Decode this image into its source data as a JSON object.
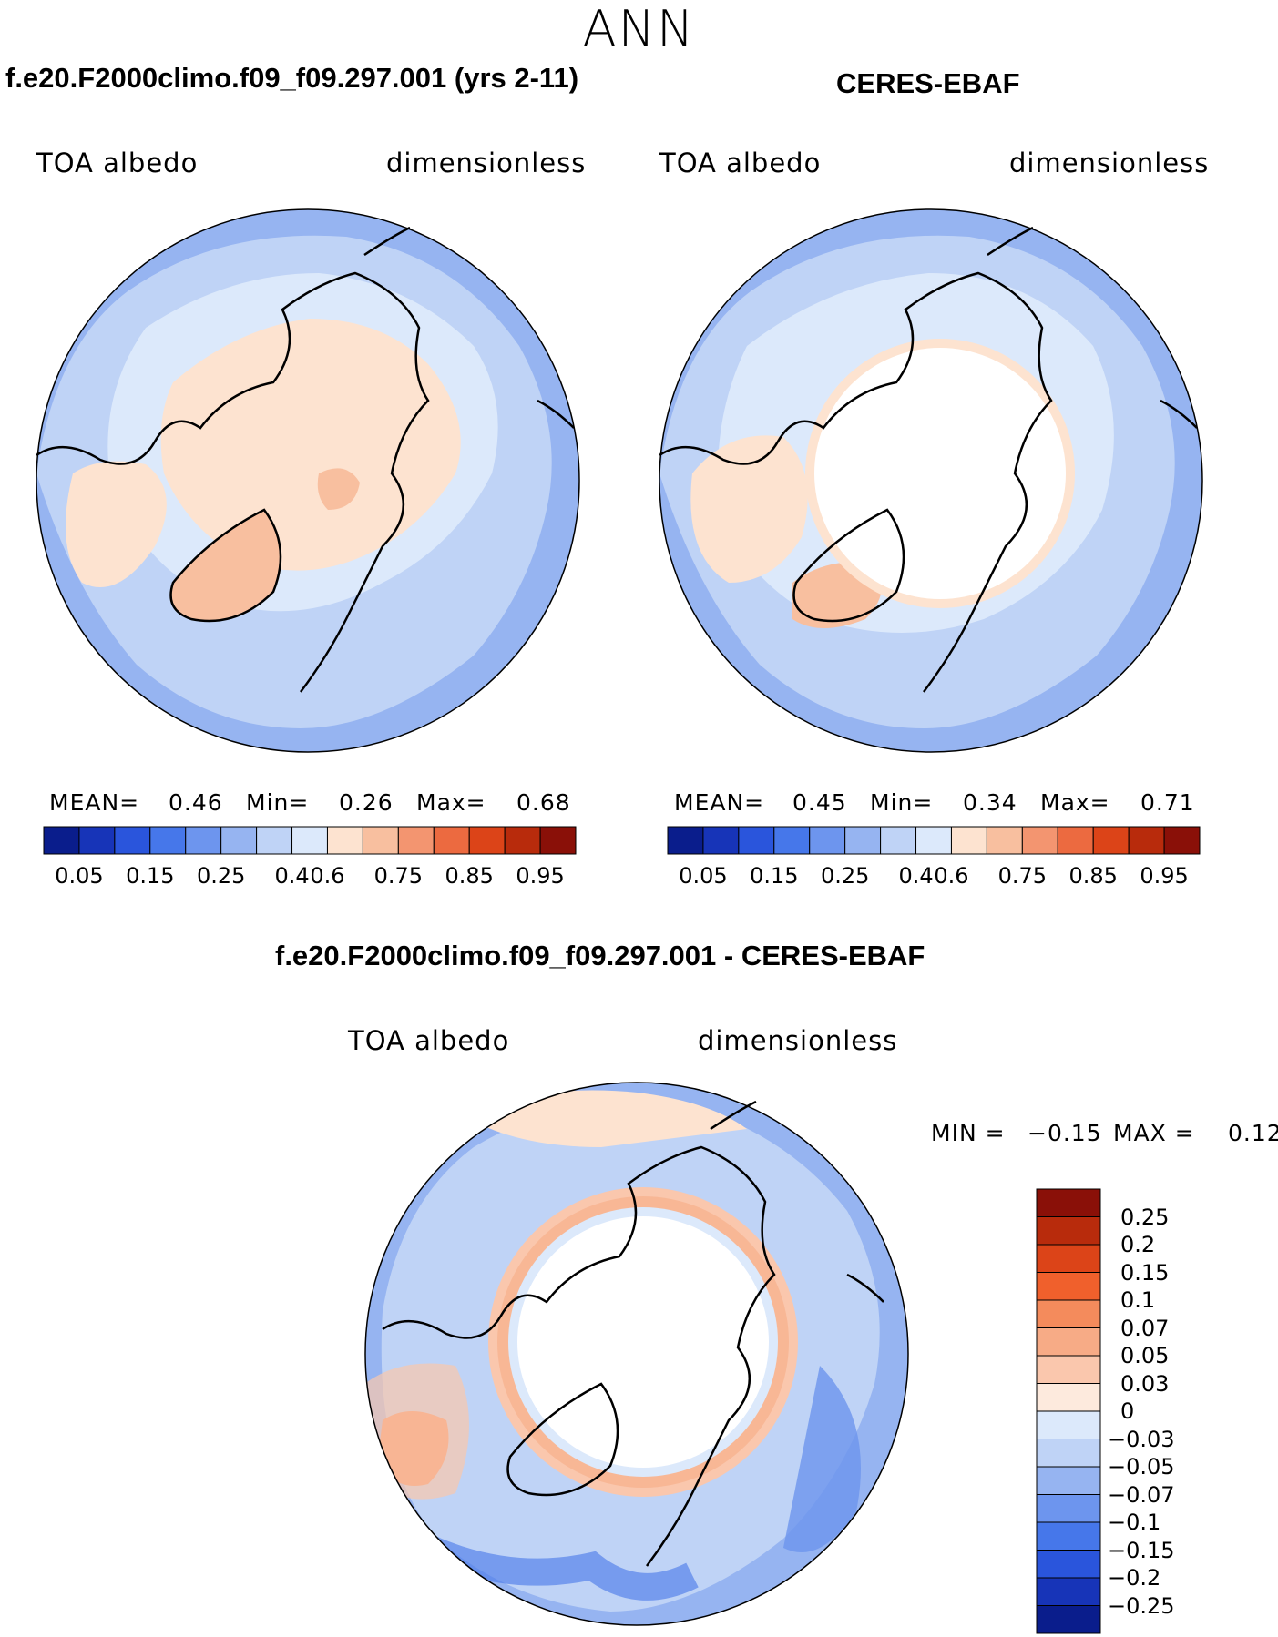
{
  "season": "ANN",
  "panels": [
    {
      "title": "f.e20.F2000climo.f09_f09.297.001 (yrs 2-11)",
      "variable": "TOA albedo",
      "units": "dimensionless",
      "stats": {
        "mean_label": "MEAN=",
        "mean": "0.46",
        "min_label": "Min=",
        "min": "0.26",
        "max_label": "Max=",
        "max": "0.68"
      },
      "has_missing_polar_cap": false
    },
    {
      "title": "CERES-EBAF",
      "variable": "TOA albedo",
      "units": "dimensionless",
      "stats": {
        "mean_label": "MEAN=",
        "mean": "0.45",
        "min_label": "Min=",
        "min": "0.34",
        "max_label": "Max=",
        "max": "0.71"
      },
      "has_missing_polar_cap": true
    }
  ],
  "colorbar": {
    "colors": [
      "#0a1d8c",
      "#1734b8",
      "#2a55dc",
      "#4677ea",
      "#6d95ee",
      "#96b4f1",
      "#bfd3f6",
      "#dce9fb",
      "#fde3d0",
      "#f8bf9f",
      "#f39570",
      "#ec6a40",
      "#dc4418",
      "#b82b0c",
      "#8a1008"
    ],
    "labels": [
      "0.05",
      "0.15",
      "0.25",
      "0.4",
      "0.6",
      "0.75",
      "0.85",
      "0.95"
    ]
  },
  "difference": {
    "title": "f.e20.F2000climo.f09_f09.297.001 - CERES-EBAF",
    "variable": "TOA albedo",
    "units": "dimensionless",
    "min_label": "MIN =",
    "min": "−0.15",
    "max_label": "MAX =",
    "max": "0.12",
    "colorbar": {
      "colors": [
        "#8a1008",
        "#b82b0c",
        "#dc4418",
        "#f0602c",
        "#f48b5c",
        "#f7ab86",
        "#fac7ad",
        "#fdeadd",
        "#dce9fb",
        "#bfd3f6",
        "#96b4f1",
        "#6d95ee",
        "#4677ea",
        "#2a55dc",
        "#1734b8",
        "#0a1d8c"
      ],
      "labels": [
        "0.25",
        "0.2",
        "0.15",
        "0.1",
        "0.07",
        "0.05",
        "0.03",
        "0",
        "−0.03",
        "−0.05",
        "−0.07",
        "−0.1",
        "−0.15",
        "−0.2",
        "−0.25"
      ]
    }
  },
  "map_colors": {
    "ocean_low": "#bfd3f6",
    "ocean_mid": "#96b4f1",
    "ocean_pale": "#dce9fb",
    "land_peach": "#fde3d0",
    "land_salmon": "#f8bf9f",
    "coast": "#000000",
    "missing": "#ffffff"
  }
}
